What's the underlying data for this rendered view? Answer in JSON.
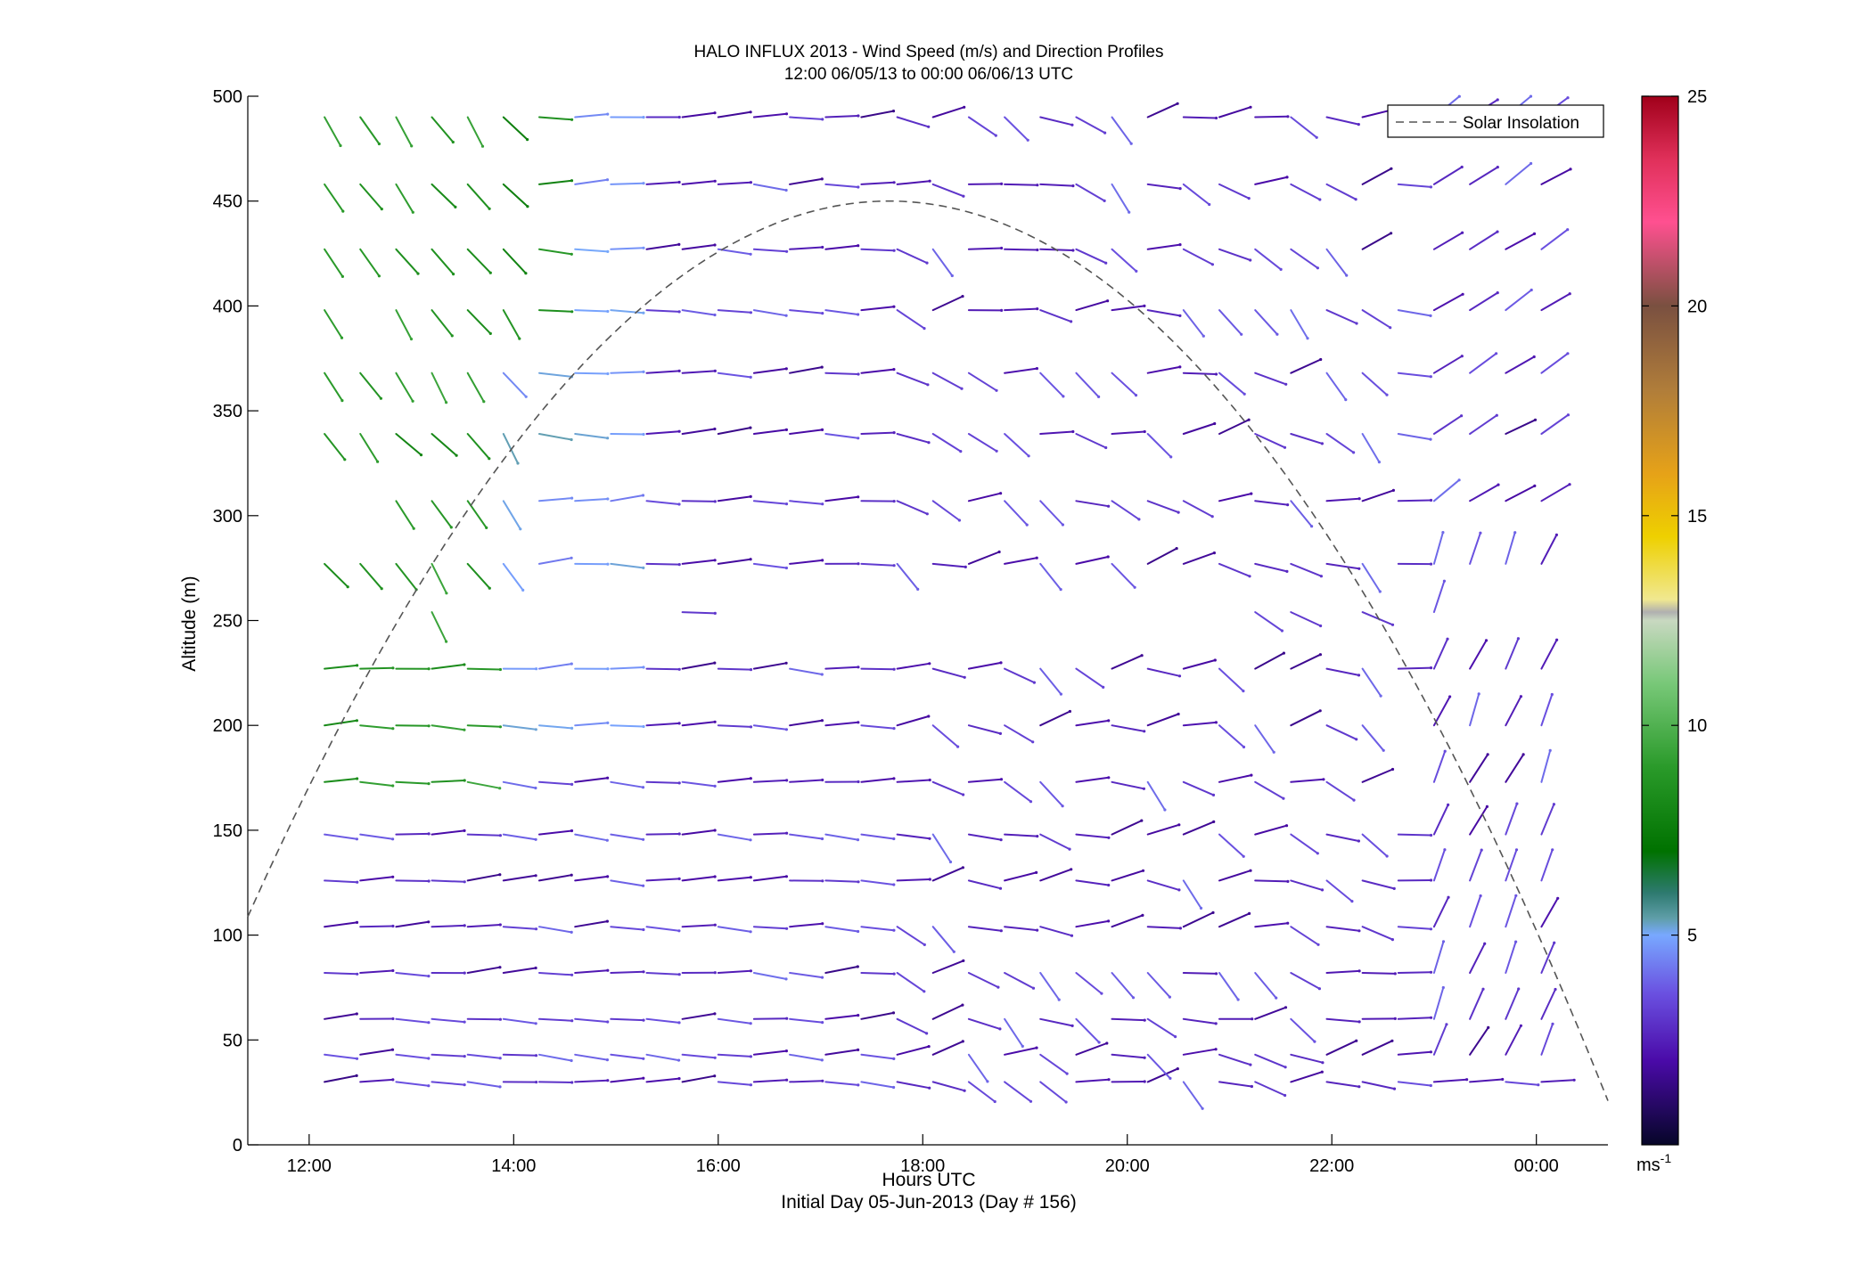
{
  "chart_data": {
    "type": "wind-barb-profile",
    "title": "HALO INFLUX 2013 - Wind Speed (m/s) and Direction Profiles",
    "subtitle": "12:00 06/05/13 to 00:00 06/06/13  UTC",
    "xlabel": "Hours UTC",
    "xlabel_sub": "Initial Day 05-Jun-2013 (Day # 156)",
    "ylabel": "Altitude (m)",
    "xlim_hours": [
      11.4,
      24.7
    ],
    "ylim": [
      0,
      500
    ],
    "x_ticks": [
      {
        "value": 12,
        "label": "12:00"
      },
      {
        "value": 14,
        "label": "14:00"
      },
      {
        "value": 16,
        "label": "16:00"
      },
      {
        "value": 18,
        "label": "18:00"
      },
      {
        "value": 20,
        "label": "20:00"
      },
      {
        "value": 22,
        "label": "22:00"
      },
      {
        "value": 24,
        "label": "00:00"
      }
    ],
    "y_ticks": [
      0,
      50,
      100,
      150,
      200,
      250,
      300,
      350,
      400,
      450,
      500
    ],
    "legend": {
      "label": "Solar Insolation",
      "position": "top-right",
      "style": "dashed",
      "color": "#555555"
    },
    "solar_insolation_curve": {
      "peak_hour": 17.67,
      "peak_altitude": 450,
      "half_width_hours": 7.2
    },
    "colorbar": {
      "min": 0,
      "max": 25,
      "ticks": [
        5,
        10,
        15,
        20,
        25
      ],
      "units_label": "ms",
      "units_exponent": "-1",
      "stops": [
        {
          "v": 0,
          "c": "#060628"
        },
        {
          "v": 2,
          "c": "#4a0aa8"
        },
        {
          "v": 3.6,
          "c": "#6a50e0"
        },
        {
          "v": 5,
          "c": "#78a8ff"
        },
        {
          "v": 5.4,
          "c": "#5f9ea8"
        },
        {
          "v": 6,
          "c": "#2e7a70"
        },
        {
          "v": 7,
          "c": "#007200"
        },
        {
          "v": 9,
          "c": "#2a9a2a"
        },
        {
          "v": 11,
          "c": "#78c878"
        },
        {
          "v": 12.5,
          "c": "#c8d8c0"
        },
        {
          "v": 12.7,
          "c": "#b0b0b0"
        },
        {
          "v": 13,
          "c": "#f0e890"
        },
        {
          "v": 14.5,
          "c": "#eed000"
        },
        {
          "v": 16,
          "c": "#e6a218"
        },
        {
          "v": 18,
          "c": "#b07d3a"
        },
        {
          "v": 20,
          "c": "#7a5040"
        },
        {
          "v": 22,
          "c": "#ff5090"
        },
        {
          "v": 23.5,
          "c": "#e0305a"
        },
        {
          "v": 25,
          "c": "#a0001a"
        }
      ]
    },
    "profile_times_hours": [
      12.15,
      12.5,
      12.85,
      13.2,
      13.55,
      13.9,
      14.25,
      14.6,
      14.95,
      15.3,
      15.65,
      16.0,
      16.35,
      16.7,
      17.05,
      17.4,
      17.75,
      18.1,
      18.45,
      18.8,
      19.15,
      19.5,
      19.85,
      20.2,
      20.55,
      20.9,
      21.25,
      21.6,
      21.95,
      22.3,
      22.65,
      23.0,
      23.35,
      23.7,
      24.05
    ],
    "profile_altitudes_m": [
      30,
      43,
      60,
      82,
      104,
      126,
      148,
      173,
      200,
      227,
      254,
      277,
      307,
      339,
      368,
      398,
      427,
      458,
      490
    ],
    "barb_length_hours": 0.32,
    "low_altitude_speeds_ms": [
      3.0,
      3.2,
      3.3,
      3.4,
      3.5
    ],
    "note": "Individual barb directions and speeds vary per profile; speeds range ~1-11 m/s."
  }
}
